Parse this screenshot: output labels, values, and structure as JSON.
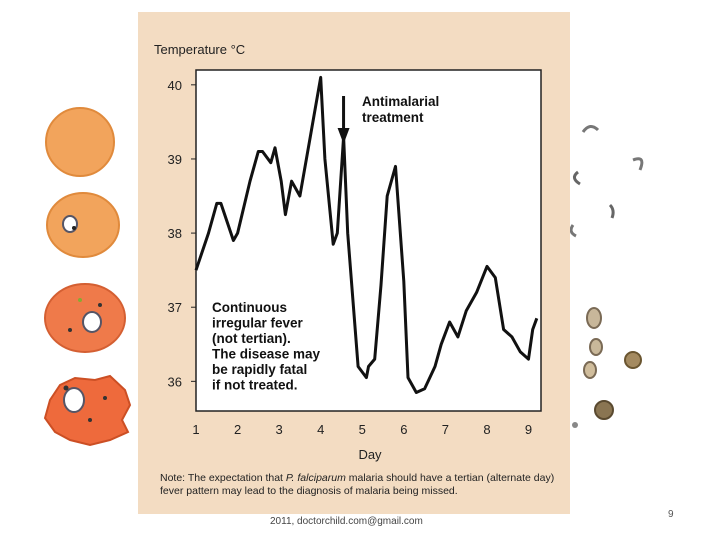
{
  "chart_data": {
    "type": "line",
    "ylabel": "Temperature °C",
    "xlabel": "Day",
    "xlim": [
      1,
      9.3
    ],
    "ylim": [
      35.6,
      40.2
    ],
    "x_ticks": [
      "1",
      "2",
      "3",
      "4",
      "5",
      "6",
      "7",
      "8",
      "9"
    ],
    "y_ticks": [
      "40",
      "39",
      "38",
      "37",
      "36"
    ],
    "series": [
      {
        "color": "#111111",
        "x": [
          1.0,
          1.3,
          1.5,
          1.6,
          1.9,
          2.0,
          2.3,
          2.5,
          2.6,
          2.8,
          2.9,
          3.05,
          3.15,
          3.3,
          3.5,
          3.75,
          4.0,
          4.1,
          4.3,
          4.4,
          4.55,
          4.65,
          4.9,
          5.1,
          5.15,
          5.3,
          5.45,
          5.6,
          5.8,
          6.0,
          6.1,
          6.3,
          6.5,
          6.75,
          6.9,
          7.1,
          7.3,
          7.5,
          7.75,
          8.0,
          8.2,
          8.4,
          8.6,
          8.8,
          9.0,
          9.1,
          9.2
        ],
        "y": [
          37.5,
          38.0,
          38.4,
          38.4,
          37.9,
          38.0,
          38.7,
          39.1,
          39.1,
          38.95,
          39.15,
          38.7,
          38.25,
          38.7,
          38.5,
          39.3,
          40.1,
          39.0,
          37.85,
          38.0,
          39.3,
          38.0,
          36.2,
          36.05,
          36.2,
          36.3,
          37.3,
          38.5,
          38.9,
          37.35,
          36.05,
          35.85,
          35.9,
          36.2,
          36.5,
          36.8,
          36.6,
          36.95,
          37.2,
          37.55,
          37.4,
          36.7,
          36.6,
          36.4,
          36.3,
          36.7,
          36.85
        ]
      }
    ],
    "annotations": {
      "arrow_label": "Antimalarial treatment",
      "arrow_x": 4.55,
      "fever_text": [
        "Continuous",
        "irregular fever",
        "(not tertian).",
        "The disease may",
        "be rapidly fatal",
        "if not treated."
      ]
    }
  },
  "note": {
    "prefix": "Note: The expectation that",
    "italic": "P. falciparum",
    "suffix": "malaria should have a tertian (alternate day) fever pattern may lead to the diagnosis of malaria being missed."
  },
  "footer_text": "2011, doctorchild.com@gmail.com",
  "page_number": "9"
}
